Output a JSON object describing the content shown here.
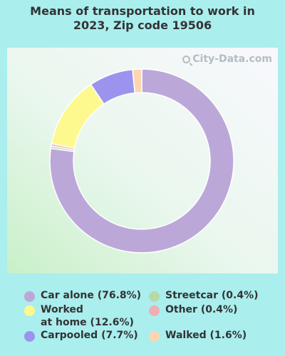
{
  "title": "Means of transportation to work in\n2023, Zip code 19506",
  "watermark": "City-Data.com",
  "chart_data": {
    "type": "pie",
    "title": "Means of transportation to work in 2023, Zip code 19506",
    "slices": [
      {
        "label": "Car alone",
        "value": 76.8,
        "color": "#bba8d9"
      },
      {
        "label": "Streetcar",
        "value": 0.4,
        "color": "#b7d9a8"
      },
      {
        "label": "Other",
        "value": 0.4,
        "color": "#efb0b3"
      },
      {
        "label": "Worked at home",
        "value": 12.6,
        "color": "#fdf98e"
      },
      {
        "label": "Carpooled",
        "value": 7.7,
        "color": "#9a94ee"
      },
      {
        "label": "Walked",
        "value": 1.6,
        "color": "#fbd6b1"
      }
    ]
  },
  "legend": [
    {
      "text": "Car alone (76.8%)",
      "color": "#bba8d9"
    },
    {
      "text": "Worked\nat home (12.6%)",
      "color": "#fdf98e"
    },
    {
      "text": "Carpooled (7.7%)",
      "color": "#9a94ee"
    },
    {
      "text": "Streetcar (0.4%)",
      "color": "#b7d9a8"
    },
    {
      "text": "Other (0.4%)",
      "color": "#efb0b3"
    },
    {
      "text": "Walked (1.6%)",
      "color": "#fbd6b1"
    }
  ]
}
